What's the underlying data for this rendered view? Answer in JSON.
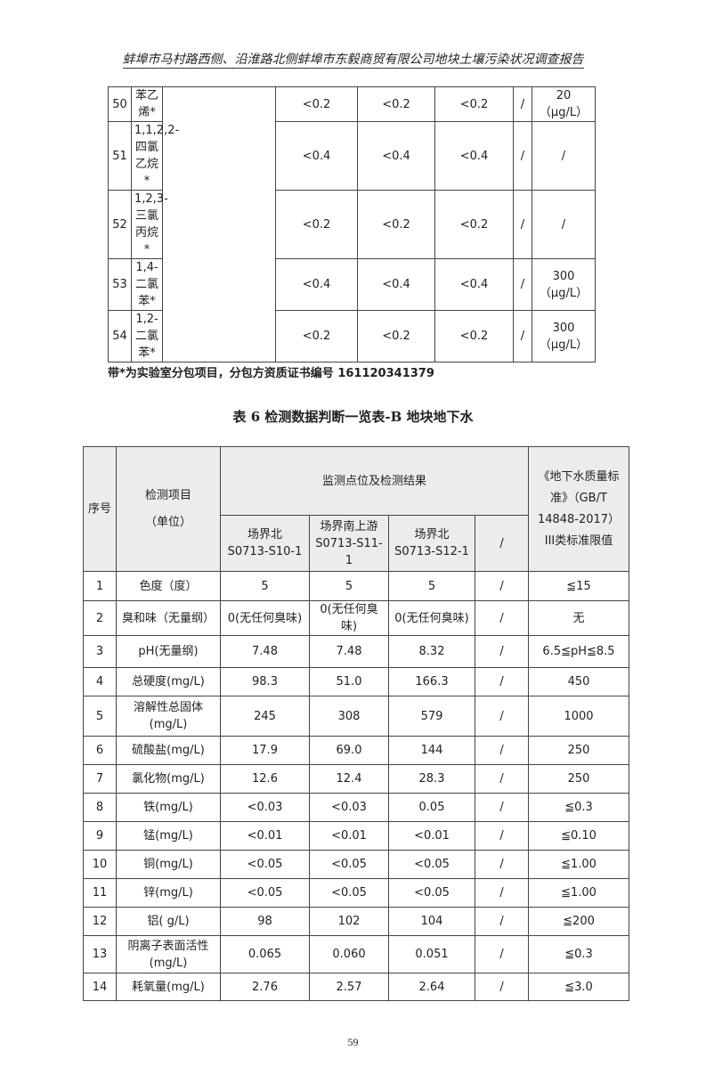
{
  "header": "蚌埠市马村路西侧、沿淮路北侧蚌埠市东毅商贸有限公司地块土壤污染状况调查报告",
  "table_top": {
    "rows": [
      {
        "no": "50",
        "item": "苯乙烯*",
        "v1": "<0.2",
        "v2": "<0.2",
        "v3": "<0.2",
        "v4": "/",
        "std": "20（μg/L）"
      },
      {
        "no": "51",
        "item": "1,1,2,2-四氯乙烷*",
        "v1": "<0.4",
        "v2": "<0.4",
        "v3": "<0.4",
        "v4": "/",
        "std": "/"
      },
      {
        "no": "52",
        "item": "1,2,3-三氯丙烷*",
        "v1": "<0.2",
        "v2": "<0.2",
        "v3": "<0.2",
        "v4": "/",
        "std": "/"
      },
      {
        "no": "53",
        "item": "1,4-二氯苯*",
        "v1": "<0.4",
        "v2": "<0.4",
        "v3": "<0.4",
        "v4": "/",
        "std": "300（μg/L）"
      },
      {
        "no": "54",
        "item": "1,2-二氯苯*",
        "v1": "<0.2",
        "v2": "<0.2",
        "v3": "<0.2",
        "v4": "/",
        "std": "300（μg/L）"
      }
    ]
  },
  "note": "带*为实验室分包项目，分包方资质证书编号 161120341379",
  "table_title": "表 6 检测数据判断一览表-B 地块地下水",
  "table_main": {
    "headers": {
      "no": "序号",
      "item": "检测项目\n（单位）",
      "group": "监测点位及检测结果",
      "points": [
        "场界北\nS0713-S10-1",
        "场界南上游\nS0713-S11-1",
        "场界北\nS0713-S12-1",
        "/"
      ],
      "std": "《地下水质量标准》（GB/T 14848-2017）III类标准限值"
    },
    "rows": [
      {
        "no": "1",
        "item": "色度（度）",
        "v1": "5",
        "v2": "5",
        "v3": "5",
        "v4": "/",
        "std": "≦15"
      },
      {
        "no": "2",
        "item": "臭和味（无量纲）",
        "v1": "0(无任何臭味)",
        "v2": "0(无任何臭味)",
        "v3": "0(无任何臭味)",
        "v4": "/",
        "std": "无"
      },
      {
        "no": "3",
        "item": "pH(无量纲)",
        "v1": "7.48",
        "v2": "7.48",
        "v3": "8.32",
        "v4": "/",
        "std": "6.5≦pH≦8.5"
      },
      {
        "no": "4",
        "item": "总硬度(mg/L)",
        "v1": "98.3",
        "v2": "51.0",
        "v3": "166.3",
        "v4": "/",
        "std": "450"
      },
      {
        "no": "5",
        "item": "溶解性总固体(mg/L)",
        "v1": "245",
        "v2": "308",
        "v3": "579",
        "v4": "/",
        "std": "1000"
      },
      {
        "no": "6",
        "item": "硫酸盐(mg/L)",
        "v1": "17.9",
        "v2": "69.0",
        "v3": "144",
        "v4": "/",
        "std": "250"
      },
      {
        "no": "7",
        "item": "氯化物(mg/L)",
        "v1": "12.6",
        "v2": "12.4",
        "v3": "28.3",
        "v4": "/",
        "std": "250"
      },
      {
        "no": "8",
        "item": "铁(mg/L)",
        "v1": "<0.03",
        "v2": "<0.03",
        "v3": "0.05",
        "v4": "/",
        "std": "≦0.3"
      },
      {
        "no": "9",
        "item": "锰(mg/L)",
        "v1": "<0.01",
        "v2": "<0.01",
        "v3": "<0.01",
        "v4": "/",
        "std": "≦0.10"
      },
      {
        "no": "10",
        "item": "铜(mg/L)",
        "v1": "<0.05",
        "v2": "<0.05",
        "v3": "<0.05",
        "v4": "/",
        "std": "≦1.00"
      },
      {
        "no": "11",
        "item": "锌(mg/L)",
        "v1": "<0.05",
        "v2": "<0.05",
        "v3": "<0.05",
        "v4": "/",
        "std": "≦1.00"
      },
      {
        "no": "12",
        "item": "铝(  g/L)",
        "v1": "98",
        "v2": "102",
        "v3": "104",
        "v4": "/",
        "std": "≦200"
      },
      {
        "no": "13",
        "item": "阴离子表面活性(mg/L)",
        "v1": "0.065",
        "v2": "0.060",
        "v3": "0.051",
        "v4": "/",
        "std": "≦0.3"
      },
      {
        "no": "14",
        "item": "耗氧量(mg/L)",
        "v1": "2.76",
        "v2": "2.57",
        "v3": "2.64",
        "v4": "/",
        "std": "≦3.0"
      }
    ]
  },
  "page_number": "59"
}
